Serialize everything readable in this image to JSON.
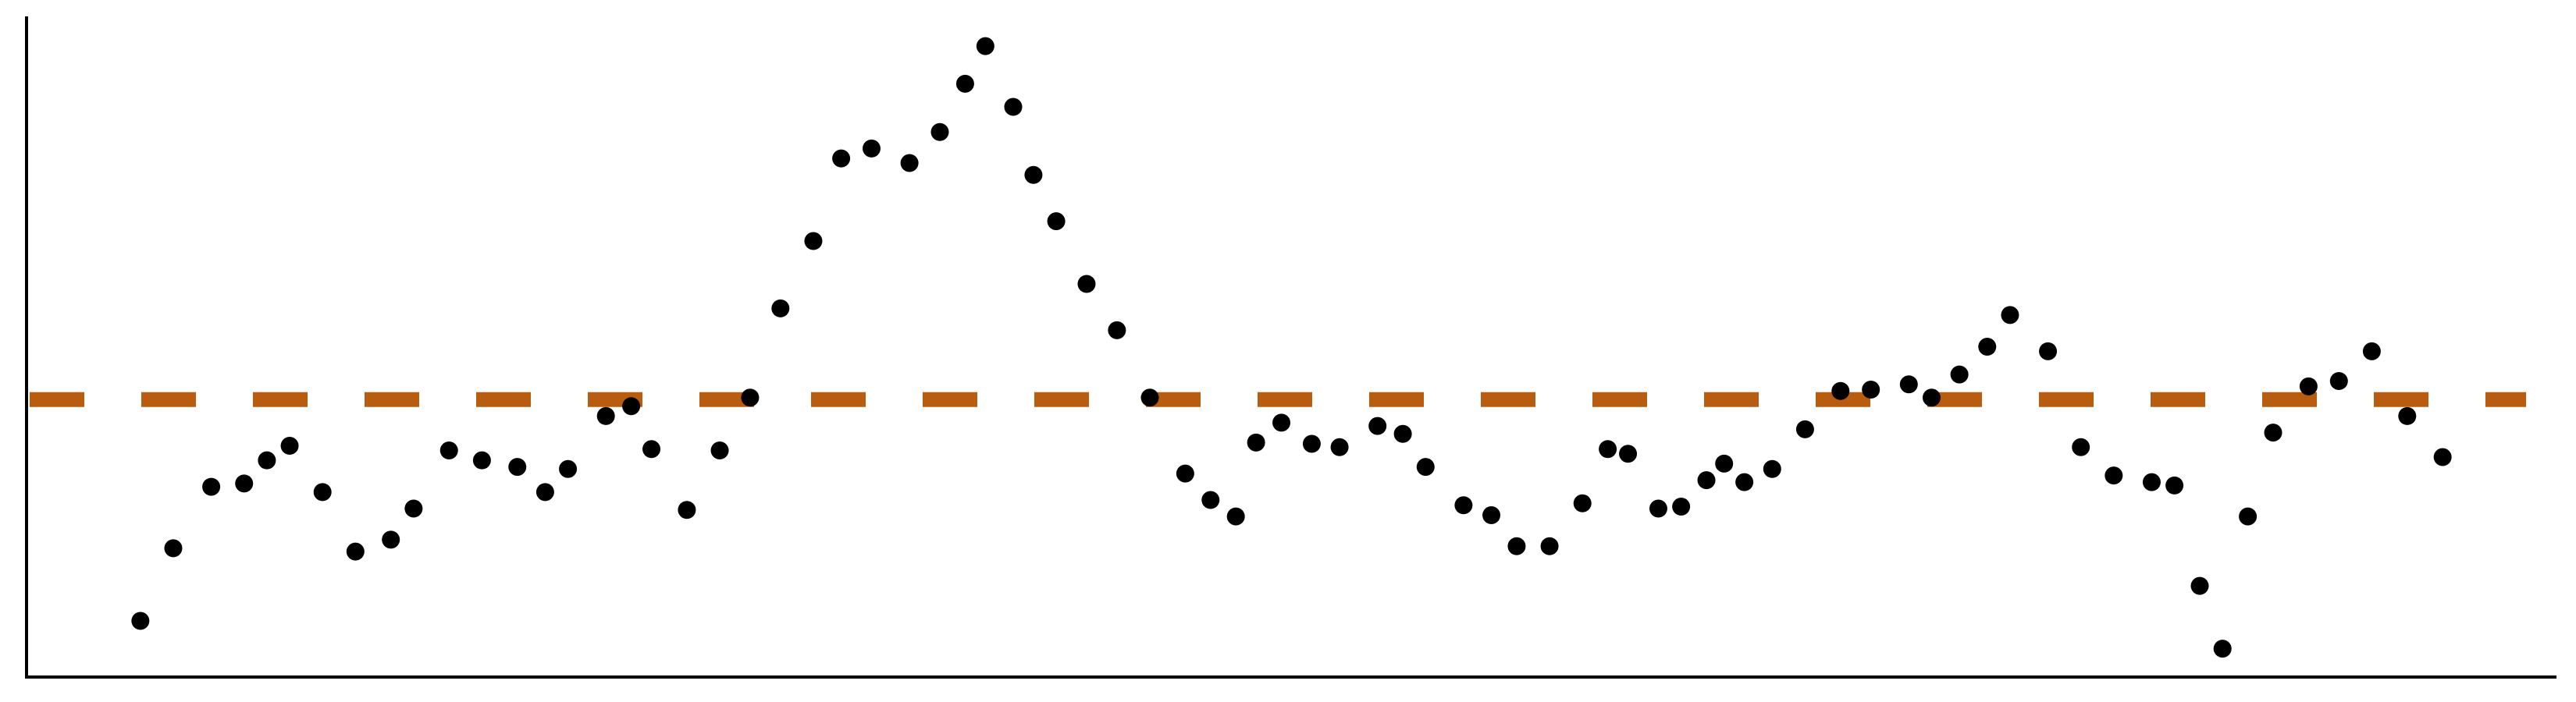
{
  "chart_data": {
    "type": "scatter",
    "x": [
      4.5,
      5.8,
      7.3,
      8.6,
      9.5,
      10.4,
      11.7,
      13.0,
      14.4,
      15.3,
      16.7,
      18.0,
      19.4,
      20.5,
      21.4,
      22.9,
      23.9,
      24.7,
      26.1,
      27.4,
      28.6,
      29.8,
      31.1,
      32.2,
      33.4,
      34.9,
      36.1,
      37.1,
      37.9,
      39.0,
      39.8,
      40.7,
      41.9,
      43.1,
      44.4,
      45.8,
      46.8,
      47.8,
      48.6,
      49.6,
      50.8,
      51.9,
      53.4,
      54.4,
      55.3,
      56.8,
      57.9,
      58.9,
      60.2,
      61.5,
      62.5,
      63.3,
      64.5,
      65.4,
      66.4,
      67.1,
      67.9,
      69.0,
      70.3,
      71.7,
      72.9,
      74.4,
      75.3,
      76.4,
      77.5,
      78.4,
      79.9,
      81.2,
      82.5,
      84.0,
      84.9,
      85.9,
      86.8,
      87.8,
      88.8,
      90.2,
      91.4,
      92.7,
      94.1,
      95.5
    ],
    "values": [
      8.5,
      19.5,
      28.8,
      29.3,
      32.8,
      35,
      28,
      19,
      20.8,
      25.5,
      34.3,
      32.8,
      31.8,
      28,
      31.5,
      39.5,
      41,
      34.5,
      25.3,
      34.3,
      42.3,
      55.8,
      66,
      78.5,
      80,
      77.8,
      82.5,
      89.8,
      95.5,
      86.3,
      76,
      69,
      59.5,
      52.5,
      42.3,
      30.8,
      26.8,
      24.3,
      35.5,
      38.5,
      35.3,
      34.8,
      38,
      36.8,
      31.8,
      26,
      24.5,
      19.8,
      19.8,
      26.3,
      34.5,
      33.8,
      25.5,
      25.8,
      29.8,
      32.3,
      29.5,
      31.5,
      37.5,
      43.3,
      43.5,
      44.3,
      42.3,
      45.8,
      50,
      54.8,
      49.3,
      34.8,
      30.5,
      29.5,
      29,
      13.8,
      4.3,
      24.3,
      37,
      44,
      44.8,
      49.3,
      39.5,
      33.3
    ],
    "color": "#000000",
    "hline": 42,
    "hline_color": "#b85c0f",
    "xlim": [
      0,
      100
    ],
    "ylim": [
      0,
      100
    ]
  }
}
